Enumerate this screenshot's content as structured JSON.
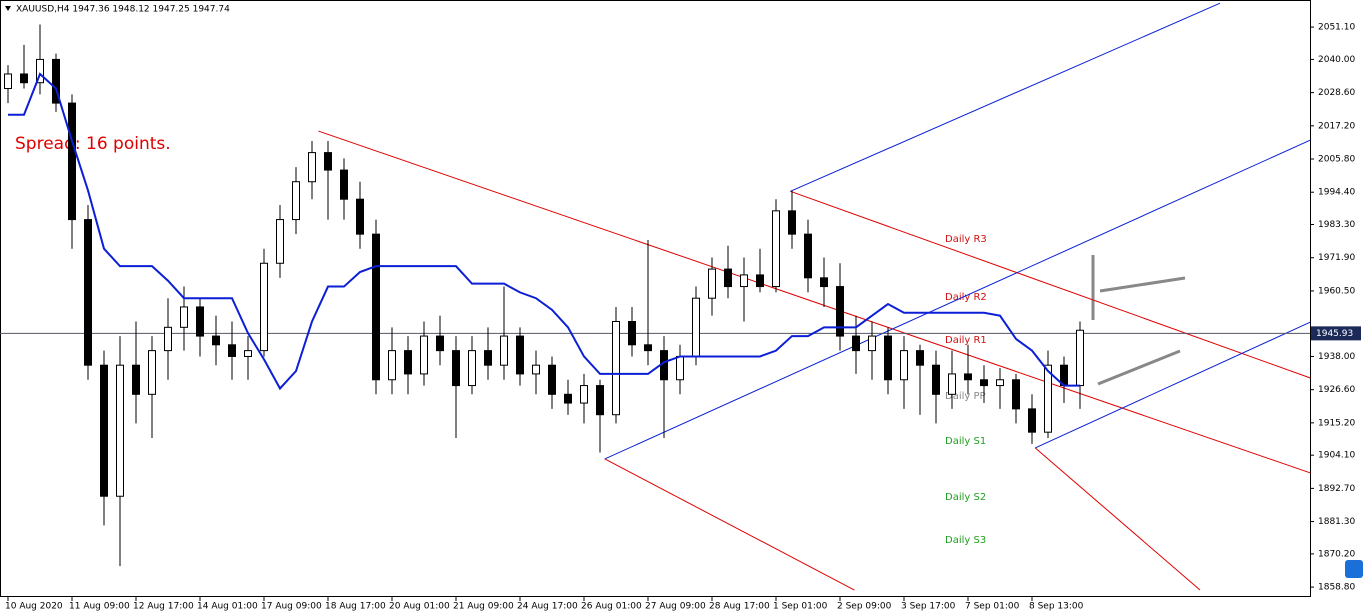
{
  "chart_data": {
    "type": "candlestick",
    "title": "XAUUSD,H4  1947.36 1948.12 1947.25 1947.74",
    "annotation": "Spread: 16 points.",
    "current_price": 1945.93,
    "ylim": [
      1855.4,
      2060.4
    ],
    "yticks": [
      {
        "value": 2051.1,
        "label": "2051.10"
      },
      {
        "value": 2040,
        "label": "2040.00"
      },
      {
        "value": 2028.6,
        "label": "2028.60"
      },
      {
        "value": 2017.2,
        "label": "2017.20"
      },
      {
        "value": 2005.8,
        "label": "2005.80"
      },
      {
        "value": 1994.4,
        "label": "1994.40"
      },
      {
        "value": 1983.3,
        "label": "1983.30"
      },
      {
        "value": 1971.9,
        "label": "1971.90"
      },
      {
        "value": 1960.5,
        "label": "1960.50"
      },
      {
        "value": 1938,
        "label": "1938.00"
      },
      {
        "value": 1926.6,
        "label": "1926.60"
      },
      {
        "value": 1915.2,
        "label": "1915.20"
      },
      {
        "value": 1904.1,
        "label": "1904.10"
      },
      {
        "value": 1892.7,
        "label": "1892.70"
      },
      {
        "value": 1881.3,
        "label": "1881.30"
      },
      {
        "value": 1870.2,
        "label": "1870.20"
      },
      {
        "value": 1858.8,
        "label": "1858.80"
      }
    ],
    "categories": [
      "10 Aug 2020",
      null,
      null,
      null,
      "11 Aug 09:00",
      null,
      null,
      null,
      "12 Aug 17:00",
      null,
      null,
      null,
      "14 Aug 01:00",
      null,
      null,
      null,
      "17 Aug 09:00",
      null,
      null,
      null,
      "18 Aug 17:00",
      null,
      null,
      null,
      "20 Aug 01:00",
      null,
      null,
      null,
      "21 Aug 09:00",
      null,
      null,
      null,
      "24 Aug 17:00",
      null,
      null,
      null,
      "26 Aug 01:00",
      null,
      null,
      null,
      "27 Aug 09:00",
      null,
      null,
      null,
      "28 Aug 17:00",
      null,
      null,
      null,
      "1 Sep 01:00",
      null,
      null,
      null,
      "2 Sep 09:00",
      null,
      null,
      null,
      "3 Sep 17:00",
      null,
      null,
      null,
      "7 Sep 01:00",
      null,
      null,
      null,
      "8 Sep 13:00",
      null,
      null,
      null
    ],
    "candles": [
      [
        2030,
        2038,
        2025,
        2035
      ],
      [
        2035,
        2045,
        2030,
        2032
      ],
      [
        2032,
        2052,
        2028,
        2040
      ],
      [
        2040,
        2042,
        2022,
        2025
      ],
      [
        2025,
        2028,
        1975,
        1985
      ],
      [
        1985,
        1990,
        1930,
        1935
      ],
      [
        1935,
        1940,
        1880,
        1890
      ],
      [
        1890,
        1945,
        1866,
        1935
      ],
      [
        1935,
        1950,
        1915,
        1925
      ],
      [
        1925,
        1945,
        1910,
        1940
      ],
      [
        1940,
        1958,
        1930,
        1948
      ],
      [
        1948,
        1962,
        1940,
        1955
      ],
      [
        1955,
        1958,
        1938,
        1945
      ],
      [
        1945,
        1952,
        1935,
        1942
      ],
      [
        1942,
        1950,
        1930,
        1938
      ],
      [
        1938,
        1945,
        1930,
        1940
      ],
      [
        1940,
        1975,
        1938,
        1970
      ],
      [
        1970,
        1990,
        1965,
        1985
      ],
      [
        1985,
        2003,
        1980,
        1998
      ],
      [
        1998,
        2012,
        1992,
        2008
      ],
      [
        2008,
        2012,
        1985,
        2002
      ],
      [
        2002,
        2006,
        1985,
        1992
      ],
      [
        1992,
        1998,
        1975,
        1980
      ],
      [
        1980,
        1985,
        1925,
        1930
      ],
      [
        1930,
        1948,
        1925,
        1940
      ],
      [
        1940,
        1945,
        1925,
        1932
      ],
      [
        1932,
        1950,
        1928,
        1945
      ],
      [
        1945,
        1952,
        1935,
        1940
      ],
      [
        1940,
        1945,
        1910,
        1928
      ],
      [
        1928,
        1945,
        1925,
        1940
      ],
      [
        1940,
        1948,
        1930,
        1935
      ],
      [
        1935,
        1962,
        1930,
        1945
      ],
      [
        1945,
        1948,
        1928,
        1932
      ],
      [
        1932,
        1940,
        1925,
        1935
      ],
      [
        1935,
        1938,
        1920,
        1925
      ],
      [
        1925,
        1930,
        1918,
        1922
      ],
      [
        1922,
        1932,
        1915,
        1928
      ],
      [
        1928,
        1930,
        1905,
        1918
      ],
      [
        1918,
        1955,
        1915,
        1950
      ],
      [
        1950,
        1955,
        1938,
        1942
      ],
      [
        1942,
        1978,
        1935,
        1940
      ],
      [
        1940,
        1945,
        1910,
        1930
      ],
      [
        1930,
        1942,
        1925,
        1938
      ],
      [
        1938,
        1962,
        1935,
        1958
      ],
      [
        1958,
        1972,
        1952,
        1968
      ],
      [
        1968,
        1976,
        1958,
        1962
      ],
      [
        1962,
        1972,
        1950,
        1966
      ],
      [
        1966,
        1975,
        1960,
        1962
      ],
      [
        1962,
        1992,
        1960,
        1988
      ],
      [
        1988,
        1995,
        1975,
        1980
      ],
      [
        1980,
        1985,
        1960,
        1965
      ],
      [
        1965,
        1972,
        1955,
        1962
      ],
      [
        1962,
        1970,
        1940,
        1945
      ],
      [
        1945,
        1952,
        1932,
        1940
      ],
      [
        1940,
        1950,
        1930,
        1945
      ],
      [
        1945,
        1948,
        1925,
        1930
      ],
      [
        1930,
        1945,
        1920,
        1940
      ],
      [
        1940,
        1942,
        1918,
        1935
      ],
      [
        1935,
        1940,
        1915,
        1925
      ],
      [
        1925,
        1940,
        1920,
        1932
      ],
      [
        1932,
        1942,
        1925,
        1930
      ],
      [
        1930,
        1935,
        1922,
        1928
      ],
      [
        1928,
        1934,
        1920,
        1930
      ],
      [
        1930,
        1932,
        1915,
        1920
      ],
      [
        1920,
        1925,
        1908,
        1912
      ],
      [
        1912,
        1940,
        1910,
        1935
      ],
      [
        1935,
        1938,
        1922,
        1928
      ],
      [
        1928,
        1950,
        1920,
        1947
      ]
    ],
    "series": [
      {
        "color": "#0a1fd6",
        "values": [
          2021,
          2021,
          2035,
          2030,
          2012,
          1995,
          1975,
          1969,
          1969,
          1969,
          1964,
          1958,
          1958,
          1958,
          1958,
          1946,
          1937,
          1927,
          1933,
          1950,
          1962,
          1962,
          1967,
          1969,
          1969,
          1969,
          1969,
          1969,
          1969,
          1963,
          1963,
          1963,
          1960,
          1958,
          1954,
          1948,
          1938,
          1932,
          1932,
          1932,
          1932,
          1936,
          1938,
          1938,
          1938,
          1938,
          1938,
          1938,
          1940,
          1945,
          1945,
          1948,
          1948,
          1948,
          1952,
          1956,
          1953,
          1953,
          1953,
          1953,
          1953,
          1953,
          1952,
          1944,
          1940,
          1933,
          1928,
          1928
        ]
      }
    ],
    "trendlines": [
      {
        "color": "#e00000",
        "from": [
          19.4,
          2015.4
        ],
        "to": [
          81.4,
          1898.0
        ]
      },
      {
        "color": "#e00000",
        "from": [
          48.9,
          1994.7
        ],
        "to": [
          81.4,
          1930.6
        ]
      },
      {
        "color": "#e00000",
        "from": [
          37.3,
          1902.8
        ],
        "to": [
          52.9,
          1857.8
        ]
      },
      {
        "color": "#e00000",
        "from": [
          64.2,
          1906.6
        ],
        "to": [
          74.5,
          1857.8
        ]
      },
      {
        "color": "#0a1fd6",
        "from": [
          37.3,
          1902.8
        ],
        "to": [
          81.4,
          2012.3
        ]
      },
      {
        "color": "#0a1fd6",
        "from": [
          48.9,
          1994.7
        ],
        "to": [
          75.75,
          2059.3
        ]
      },
      {
        "color": "#0a1fd6",
        "from": [
          64.2,
          1906.6
        ],
        "to": [
          81.4,
          1949.8
        ]
      }
    ],
    "pivots": [
      {
        "label": "Daily R3",
        "value": 1978.3,
        "color": "#d01010"
      },
      {
        "label": "Daily R2",
        "value": 1958.4,
        "color": "#d01010"
      },
      {
        "label": "Daily R1",
        "value": 1943.6,
        "color": "#d01010"
      },
      {
        "label": "Daily PP",
        "value": 1924.4,
        "color": "#888888"
      },
      {
        "label": "Daily S1",
        "value": 1909,
        "color": "#20a020"
      },
      {
        "label": "Daily S2",
        "value": 1889.7,
        "color": "#20a020"
      },
      {
        "label": "Daily S3",
        "value": 1875,
        "color": "#20a020"
      }
    ]
  }
}
